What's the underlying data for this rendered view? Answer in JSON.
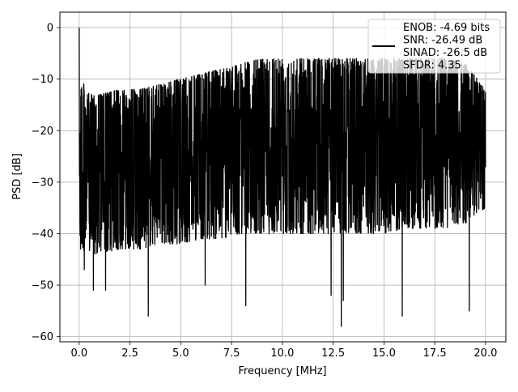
{
  "chart_data": {
    "type": "line",
    "title": "",
    "xlabel": "Frequency [MHz]",
    "ylabel": "PSD [dB]",
    "xlim": [
      -0.95,
      21.0
    ],
    "ylim": [
      -61.0,
      3.0
    ],
    "xticks": [
      0.0,
      2.5,
      5.0,
      7.5,
      10.0,
      12.5,
      15.0,
      17.5,
      20.0
    ],
    "xtick_labels": [
      "0.0",
      "2.5",
      "5.0",
      "7.5",
      "10.0",
      "12.5",
      "15.0",
      "17.5",
      "20.0"
    ],
    "yticks": [
      0,
      -10,
      -20,
      -30,
      -40,
      -50,
      -60
    ],
    "ytick_labels": [
      "0",
      "−10",
      "−20",
      "−30",
      "−40",
      "−50",
      "−60"
    ],
    "grid": true,
    "legend_position": "top-right",
    "series": [
      {
        "name": "ENOB: -4.69 bits\nSNR: -26.49 dB\nSINAD: -26.5 dB\nSFDR: 4.35",
        "color": "#000000",
        "envelope": {
          "x": [
            0.0,
            0.02,
            0.05,
            0.1,
            0.5,
            1.0,
            2.0,
            3.0,
            4.0,
            5.0,
            6.0,
            7.0,
            8.0,
            9.0,
            10.0,
            11.0,
            12.0,
            13.0,
            14.0,
            15.0,
            16.0,
            17.0,
            18.0,
            19.0,
            20.0
          ],
          "upper": [
            0,
            -7,
            -10,
            -10,
            -13,
            -13,
            -12,
            -12,
            -11,
            -10,
            -9,
            -8,
            -7,
            -6,
            -6,
            -6,
            -6,
            -6,
            -6,
            -6,
            -6,
            -6,
            -6,
            -7,
            -12
          ],
          "lower": [
            -38,
            -40,
            -42,
            -43,
            -44,
            -44,
            -43,
            -43,
            -42,
            -42,
            -41,
            -41,
            -40,
            -40,
            -40,
            -40,
            -40,
            -40,
            -40,
            -40,
            -39,
            -39,
            -39,
            -38,
            -35
          ]
        },
        "dips": [
          {
            "x": 0.07,
            "y": -43
          },
          {
            "x": 0.15,
            "y": -42
          },
          {
            "x": 0.25,
            "y": -47
          },
          {
            "x": 0.7,
            "y": -51
          },
          {
            "x": 1.3,
            "y": -51
          },
          {
            "x": 3.4,
            "y": -56
          },
          {
            "x": 6.2,
            "y": -50
          },
          {
            "x": 8.2,
            "y": -54
          },
          {
            "x": 12.4,
            "y": -52
          },
          {
            "x": 12.9,
            "y": -58
          },
          {
            "x": 13.0,
            "y": -53
          },
          {
            "x": 15.9,
            "y": -56
          },
          {
            "x": 19.2,
            "y": -55
          }
        ]
      }
    ]
  }
}
